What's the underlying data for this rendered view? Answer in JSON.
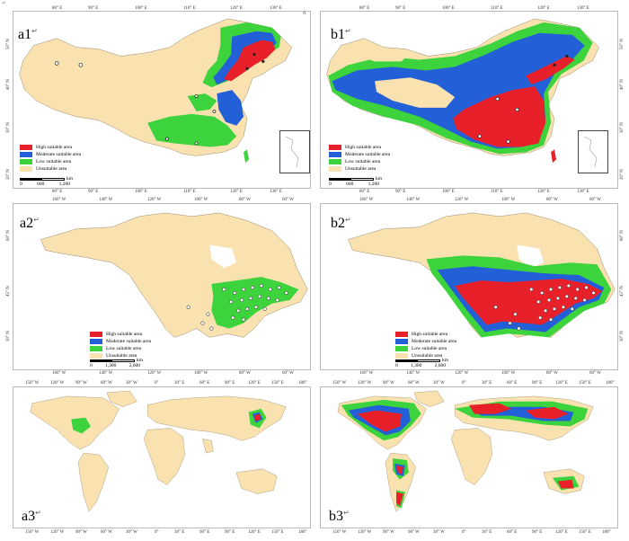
{
  "page_mark": "↵",
  "panels": {
    "a1": {
      "label": "a1",
      "return_mark": "↵",
      "top_ticks": [
        "80° E",
        "90° E",
        "100° E",
        "110° E",
        "120° E",
        "130° E"
      ],
      "bottom_ticks": [
        "80° E",
        "90° E",
        "100° E",
        "110° E",
        "120° E",
        "130° E"
      ],
      "left_ticks": [
        "50° N",
        "40° N",
        "30° N",
        "20° N"
      ]
    },
    "b1": {
      "label": "b1",
      "return_mark": "↵",
      "top_ticks": [
        "80° E",
        "90° E",
        "100° E",
        "110° E",
        "120° E",
        "130° E"
      ],
      "bottom_ticks": [
        "80° E",
        "90° E",
        "100° E",
        "110° E",
        "120° E",
        "130° E"
      ],
      "right_ticks": [
        "50° N",
        "40° N",
        "30° N",
        "20° N"
      ]
    },
    "a2": {
      "label": "a2",
      "return_mark": "↵",
      "top_ticks": [
        "160° W",
        "140° W",
        "120° W",
        "100° W",
        "80° W",
        "60° W"
      ],
      "bottom_ticks": [
        "160° W",
        "140° W",
        "120° W",
        "100° W",
        "80° W",
        "60° W"
      ],
      "left_ticks": [
        "60° N",
        "45° N",
        "30° N"
      ]
    },
    "b2": {
      "label": "b2",
      "return_mark": "↵",
      "top_ticks": [
        "160° W",
        "140° W",
        "120° W",
        "100° W",
        "80° W",
        "60° W"
      ],
      "bottom_ticks": [
        "160° W",
        "140° W",
        "120° W",
        "100° W",
        "80° W",
        "60° W"
      ],
      "right_ticks": [
        "60° N",
        "45° N",
        "30° N"
      ]
    },
    "a3": {
      "label": "a3",
      "return_mark": "↵",
      "top_ticks": [
        "150° W",
        "120° W",
        "90° W",
        "60° W",
        "30° W",
        "0°",
        "30° E",
        "60° E",
        "90° E",
        "120° E",
        "150° E",
        "180°"
      ],
      "bottom_ticks": [
        "150° W",
        "120° W",
        "90° W",
        "60° W",
        "30° W",
        "0°",
        "30° E",
        "60° E",
        "90° E",
        "120° E",
        "150° E",
        "180°"
      ]
    },
    "b3": {
      "label": "b3",
      "return_mark": "↵",
      "top_ticks": [
        "150° W",
        "120° W",
        "90° W",
        "60° W",
        "30° W",
        "0°",
        "30° E",
        "60° E",
        "90° E",
        "120° E",
        "150° E",
        "180°"
      ],
      "bottom_ticks": [
        "150° W",
        "120° W",
        "90° W",
        "60° W",
        "30° W",
        "0°",
        "30° E",
        "60° E",
        "90° E",
        "120° E",
        "150° E",
        "180°"
      ]
    }
  },
  "legend": {
    "high": "High suitable area",
    "moderate": "Moderate suitable area",
    "low": "Low suitable area",
    "unsuitable": "Unsuitable area"
  },
  "scale_china": {
    "values": [
      "0",
      "600",
      "1,200"
    ],
    "unit": "km"
  },
  "scale_na": {
    "values": [
      "0",
      "1,300",
      "2,600"
    ],
    "unit": "km"
  },
  "north_label": "N",
  "colors": {
    "high": "#e8202a",
    "moderate": "#2360d8",
    "low": "#3cd33c",
    "unsuitable": "#f9e1b0",
    "water": "#ffffff",
    "border": "#9a8a70"
  }
}
